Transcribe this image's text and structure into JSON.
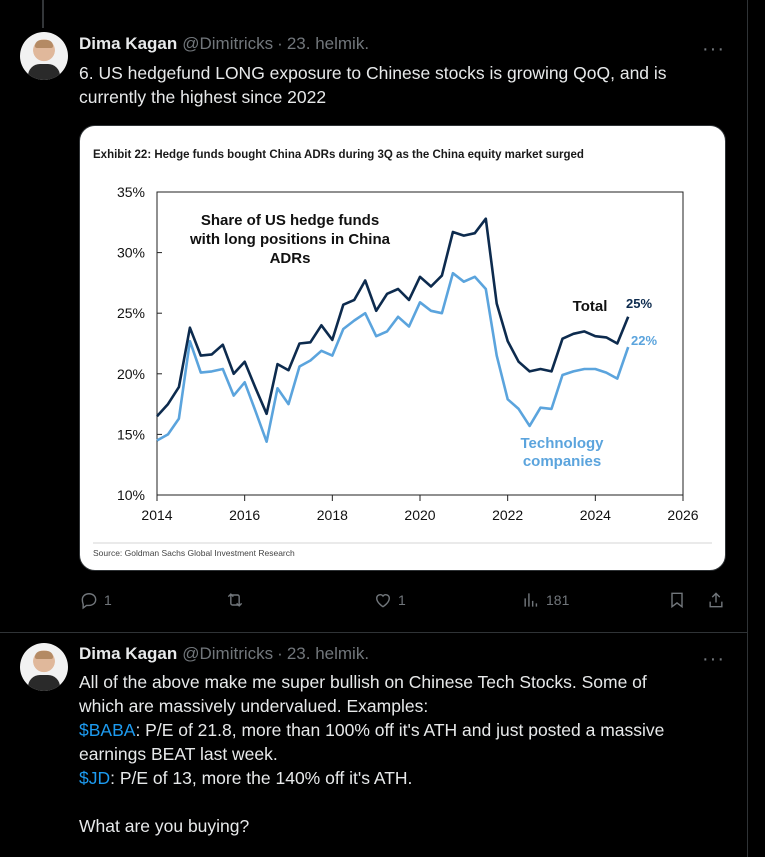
{
  "tweets": [
    {
      "author_name": "Dima Kagan",
      "handle": "@Dimitricks",
      "separator": "·",
      "time": "23. helmik.",
      "more": "···",
      "text_lines": [
        "6. US hedgefund LONG exposure to Chinese stocks is growing QoQ, and is",
        "currently the highest since 2022"
      ],
      "actions": {
        "reply_count": "1",
        "repost_count": "",
        "like_count": "1",
        "views_count": "181"
      }
    },
    {
      "author_name": "Dima Kagan",
      "handle": "@Dimitricks",
      "separator": "·",
      "time": "23. helmik.",
      "more": "···",
      "line1": "All of the above make me super bullish on Chinese Tech Stocks. Some of",
      "line2": "which are massively undervalued. Examples:",
      "baba_tag": "$BABA",
      "baba_text": ": P/E of 21.8, more than 100% off it's ATH and just posted a massive",
      "baba_text2": "earnings BEAT last week.",
      "jd_tag": "$JD",
      "jd_text": ": P/E of 13, more the 140% off it's ATH.",
      "question": "What are you buying?"
    }
  ],
  "colors": {
    "total_line": "#0d2b4e",
    "tech_line": "#5ba4dd",
    "cashtag": "#1d9bf0"
  },
  "chart_data": {
    "type": "line",
    "title": "Exhibit 22: Hedge funds bought China ADRs during 3Q as the China equity market surged",
    "annotation": [
      "Share of US hedge funds",
      "with long positions in China",
      "ADRs"
    ],
    "source": "Source: Goldman Sachs Global Investment Research",
    "xlim": [
      2014,
      2026
    ],
    "ylim": [
      10,
      35
    ],
    "x_ticks": [
      "2014",
      "2016",
      "2018",
      "2020",
      "2022",
      "2024",
      "2026"
    ],
    "y_ticks": [
      "10%",
      "15%",
      "20%",
      "25%",
      "30%",
      "35%"
    ],
    "grid": false,
    "series": [
      {
        "name": "Total",
        "end_label": "25%",
        "x": [
          2014.0,
          2014.25,
          2014.5,
          2014.75,
          2015.0,
          2015.25,
          2015.5,
          2015.75,
          2016.0,
          2016.25,
          2016.5,
          2016.75,
          2017.0,
          2017.25,
          2017.5,
          2017.75,
          2018.0,
          2018.25,
          2018.5,
          2018.75,
          2019.0,
          2019.25,
          2019.5,
          2019.75,
          2020.0,
          2020.25,
          2020.5,
          2020.75,
          2021.0,
          2021.25,
          2021.5,
          2021.75,
          2022.0,
          2022.25,
          2022.5,
          2022.75,
          2023.0,
          2023.25,
          2023.5,
          2023.75,
          2024.0,
          2024.25,
          2024.5,
          2024.75
        ],
        "values": [
          16.5,
          17.5,
          18.9,
          23.8,
          21.5,
          21.6,
          22.4,
          20.0,
          21.0,
          18.8,
          16.7,
          20.8,
          20.3,
          22.5,
          22.6,
          24.0,
          22.8,
          25.7,
          26.1,
          27.7,
          25.2,
          26.6,
          27.0,
          26.1,
          28.0,
          27.2,
          28.1,
          31.7,
          31.4,
          31.6,
          32.8,
          25.8,
          22.7,
          21.0,
          20.2,
          20.4,
          20.2,
          22.9,
          23.3,
          23.5,
          23.1,
          23.0,
          22.5,
          24.7
        ]
      },
      {
        "name": "Technology companies",
        "end_label": "22%",
        "x": [
          2014.0,
          2014.25,
          2014.5,
          2014.75,
          2015.0,
          2015.25,
          2015.5,
          2015.75,
          2016.0,
          2016.25,
          2016.5,
          2016.75,
          2017.0,
          2017.25,
          2017.5,
          2017.75,
          2018.0,
          2018.25,
          2018.5,
          2018.75,
          2019.0,
          2019.25,
          2019.5,
          2019.75,
          2020.0,
          2020.25,
          2020.5,
          2020.75,
          2021.0,
          2021.25,
          2021.5,
          2021.75,
          2022.0,
          2022.25,
          2022.5,
          2022.75,
          2023.0,
          2023.25,
          2023.5,
          2023.75,
          2024.0,
          2024.25,
          2024.5,
          2024.75
        ],
        "values": [
          14.5,
          15.0,
          16.3,
          22.7,
          20.1,
          20.2,
          20.4,
          18.2,
          19.3,
          16.9,
          14.4,
          18.8,
          17.5,
          20.6,
          21.1,
          21.9,
          21.5,
          23.7,
          24.4,
          25.0,
          23.1,
          23.5,
          24.7,
          23.9,
          25.9,
          25.2,
          25.0,
          28.3,
          27.6,
          28.0,
          27.0,
          21.5,
          17.9,
          17.1,
          15.7,
          17.2,
          17.1,
          19.9,
          20.2,
          20.4,
          20.4,
          20.1,
          19.6,
          22.2
        ]
      }
    ]
  }
}
